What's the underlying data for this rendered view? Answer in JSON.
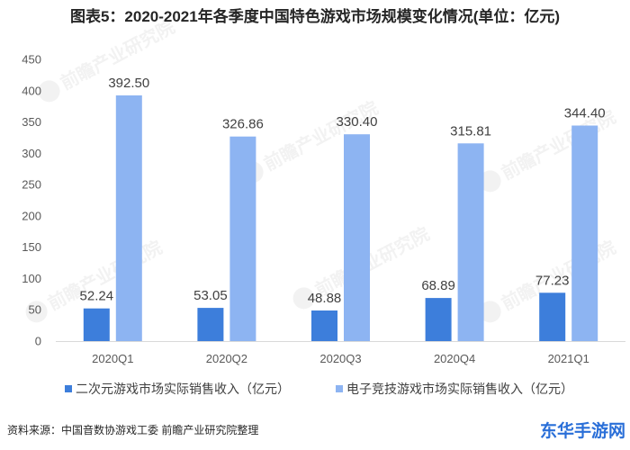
{
  "source": "资料来源：中国音数协游戏工委 前瞻产业研究院整理",
  "watermark": {
    "text": "前瞻产业研究院",
    "corner_logo": "东华手游网",
    "corner_logo_color": "#2A6FD8"
  },
  "chart_data": {
    "type": "bar",
    "title": "图表5：2020-2021年各季度中国特色游戏市场规模变化情况(单位：亿元)",
    "categories": [
      "2020Q1",
      "2020Q2",
      "2020Q3",
      "2020Q4",
      "2021Q1"
    ],
    "series": [
      {
        "name": "二次元游戏市场实际销售收入（亿元）",
        "color": "#3D7EDB",
        "values": [
          52.24,
          53.05,
          48.88,
          68.89,
          77.23
        ],
        "labels": [
          "52.24",
          "53.05",
          "48.88",
          "68.89",
          "77.23"
        ]
      },
      {
        "name": "电子竞技游戏市场实际销售收入（亿元）",
        "color": "#8DB4F2",
        "values": [
          392.5,
          326.86,
          330.4,
          315.81,
          344.4
        ],
        "labels": [
          "392.50",
          "326.86",
          "330.40",
          "315.81",
          "344.40"
        ]
      }
    ],
    "yticks": [
      0,
      50,
      100,
      150,
      200,
      250,
      300,
      350,
      400,
      450
    ],
    "ylim": [
      0,
      450
    ],
    "xlabel": "",
    "ylabel": "",
    "grid": false,
    "legend_position": "bottom"
  }
}
